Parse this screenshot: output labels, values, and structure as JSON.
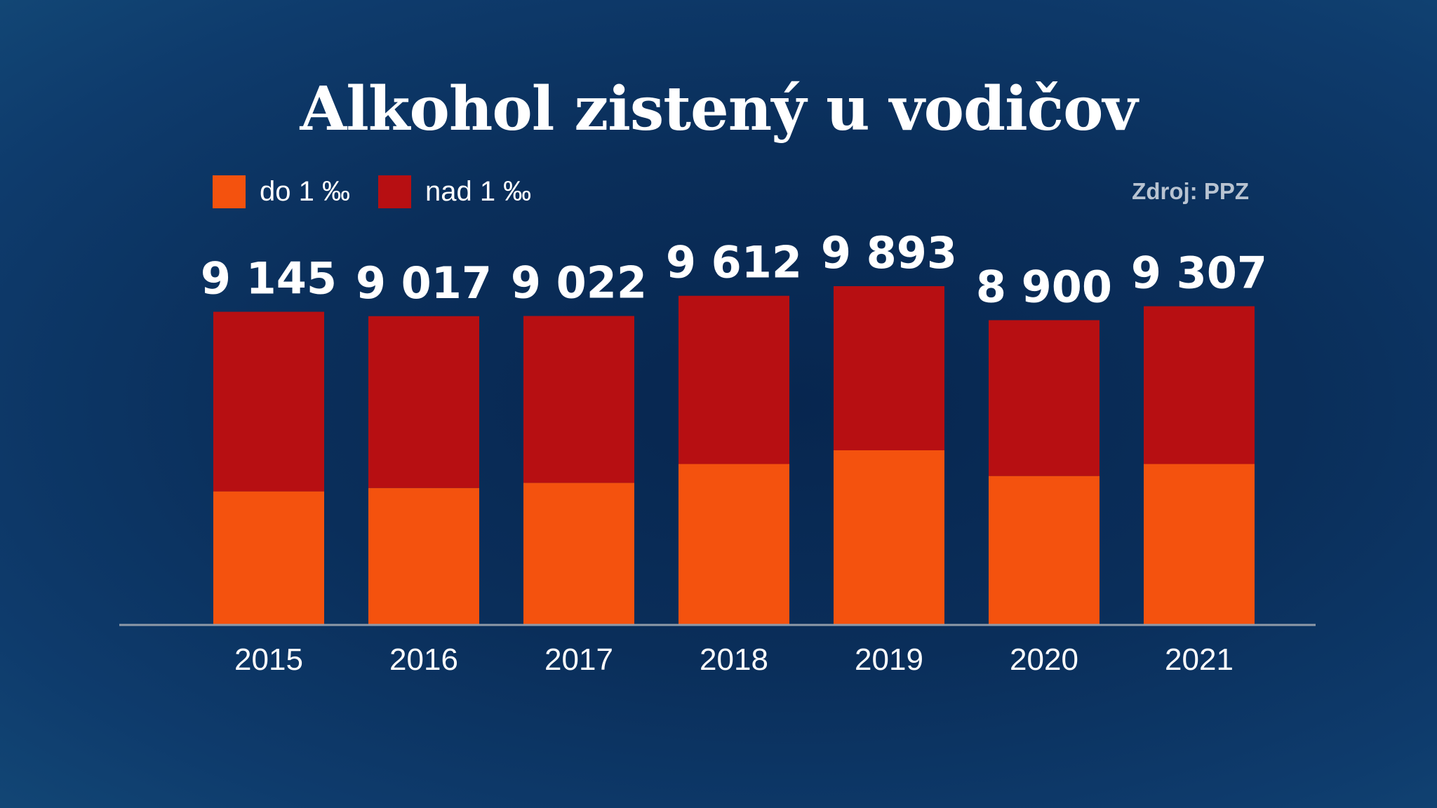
{
  "title": "Alkohol zistený u vodičov",
  "source": "Zdroj: PPZ",
  "legend": [
    {
      "label": "do 1 ‰",
      "color": "#f4520e"
    },
    {
      "label": "nad 1 ‰",
      "color": "#b70f12"
    }
  ],
  "chart_data": {
    "type": "bar",
    "stacked": true,
    "title": "Alkohol zistený u vodičov",
    "categories": [
      "2015",
      "2016",
      "2017",
      "2018",
      "2019",
      "2020",
      "2021"
    ],
    "series": [
      {
        "name": "do 1 ‰",
        "color": "#f4520e",
        "values": [
          3900,
          4000,
          4150,
          4700,
          5100,
          4350,
          4700
        ]
      },
      {
        "name": "nad 1 ‰",
        "color": "#b70f12",
        "values": [
          5245,
          5017,
          4872,
          4912,
          4793,
          4550,
          4607
        ]
      }
    ],
    "totals": [
      9145,
      9017,
      9022,
      9612,
      9893,
      8900,
      9307
    ],
    "total_labels": [
      "9 145",
      "9 017",
      "9 022",
      "9 612",
      "9 893",
      "8 900",
      "9 307"
    ],
    "xlabel": "",
    "ylabel": "",
    "ylim": [
      0,
      9893
    ],
    "grid": false,
    "legend_position": "top-left"
  }
}
